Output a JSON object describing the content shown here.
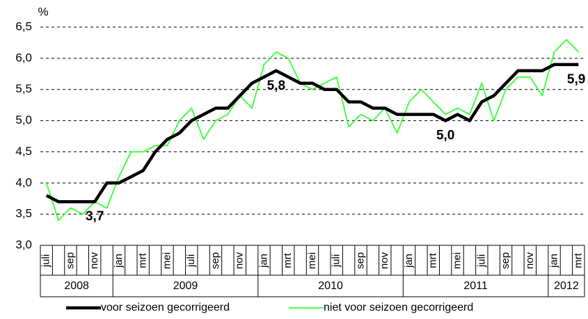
{
  "chart_data": {
    "type": "line",
    "y_label": "%",
    "categories": [
      "juli",
      null,
      "sep",
      null,
      "nov",
      null,
      "jan",
      null,
      "mrt",
      null,
      "mei",
      null,
      "juli",
      null,
      "sep",
      null,
      "nov",
      null,
      "jan",
      null,
      "mrt",
      null,
      "mei",
      null,
      "juli",
      null,
      "sep",
      null,
      "nov",
      null,
      "jan",
      null,
      "mrt",
      null,
      "mei",
      null,
      "juli",
      null,
      "sep",
      null,
      "nov",
      null,
      "jan",
      null,
      "mrt"
    ],
    "category_groups": [
      "2008",
      "2008",
      "2008",
      "2008",
      "2008",
      "2008",
      "2009",
      "2009",
      "2009",
      "2009",
      "2009",
      "2009",
      "2009",
      "2009",
      "2009",
      "2009",
      "2009",
      "2009",
      "2010",
      "2010",
      "2010",
      "2010",
      "2010",
      "2010",
      "2010",
      "2010",
      "2010",
      "2010",
      "2010",
      "2010",
      "2011",
      "2011",
      "2011",
      "2011",
      "2011",
      "2011",
      "2011",
      "2011",
      "2011",
      "2011",
      "2011",
      "2011",
      "2012",
      "2012",
      "2012"
    ],
    "series": [
      {
        "name": "voor seizoen gecorrigeerd",
        "color": "#000000",
        "values": [
          3.8,
          3.7,
          3.7,
          3.7,
          3.7,
          4.0,
          4.0,
          4.1,
          4.2,
          4.5,
          4.7,
          4.8,
          5.0,
          5.1,
          5.2,
          5.2,
          5.4,
          5.6,
          5.7,
          5.8,
          5.7,
          5.6,
          5.6,
          5.5,
          5.5,
          5.3,
          5.3,
          5.2,
          5.2,
          5.1,
          5.1,
          5.1,
          5.1,
          5.0,
          5.1,
          5.0,
          5.3,
          5.4,
          5.6,
          5.8,
          5.8,
          5.8,
          5.9,
          5.9,
          5.9
        ],
        "value_labels": [
          null,
          null,
          null,
          null,
          "3,7",
          null,
          null,
          null,
          null,
          null,
          null,
          null,
          null,
          null,
          null,
          null,
          null,
          null,
          null,
          "5,8",
          null,
          null,
          null,
          null,
          null,
          null,
          null,
          null,
          null,
          null,
          null,
          null,
          null,
          "5,0",
          null,
          null,
          null,
          null,
          null,
          null,
          null,
          null,
          null,
          null,
          "5,9"
        ]
      },
      {
        "name": "niet voor seizoen gecorrigeerd",
        "color": "#33ff33",
        "values": [
          4.0,
          3.4,
          3.6,
          3.5,
          3.7,
          3.6,
          4.1,
          4.5,
          4.5,
          4.6,
          4.6,
          5.0,
          5.2,
          4.7,
          5.0,
          5.1,
          5.4,
          5.2,
          5.9,
          6.1,
          6.0,
          5.6,
          5.5,
          5.6,
          5.7,
          4.9,
          5.1,
          5.0,
          5.2,
          4.8,
          5.3,
          5.5,
          5.3,
          5.1,
          5.2,
          5.1,
          5.6,
          5.0,
          5.5,
          5.7,
          5.7,
          5.4,
          6.1,
          6.3,
          6.1
        ]
      }
    ],
    "ylim": [
      3.0,
      6.5
    ],
    "yticks": [
      {
        "value": 3.0,
        "label": "3,0"
      },
      {
        "value": 3.5,
        "label": "3,5"
      },
      {
        "value": 4.0,
        "label": "4,0"
      },
      {
        "value": 4.5,
        "label": "4,5"
      },
      {
        "value": 5.0,
        "label": "5,0"
      },
      {
        "value": 5.5,
        "label": "5,5"
      },
      {
        "value": 6.0,
        "label": "6,0"
      },
      {
        "value": 6.5,
        "label": "6,5"
      }
    ],
    "grid": true
  }
}
